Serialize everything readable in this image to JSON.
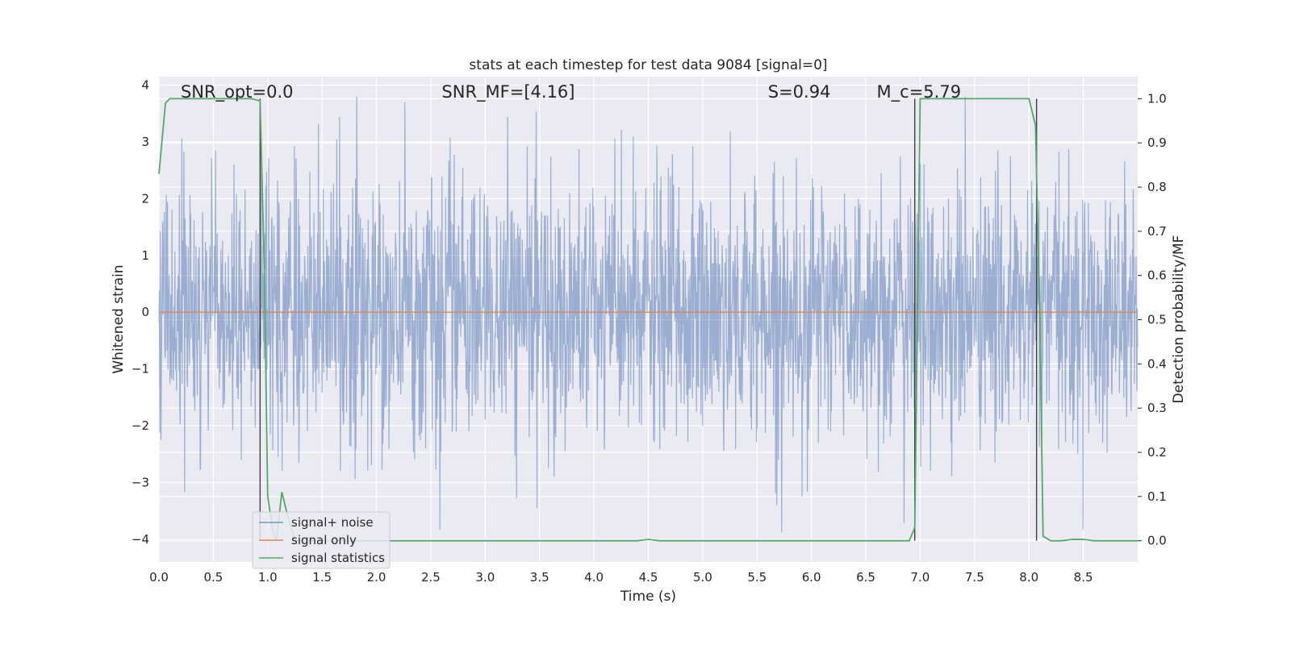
{
  "chart_data": {
    "type": "line",
    "title": "stats at each timestep for test data 9084 [signal=0]",
    "xlabel": "Time (s)",
    "ylabel_left": "Whitened strain",
    "ylabel_right": "Detection probability/MF",
    "xlim": [
      0.0,
      9.0
    ],
    "ylim_left": [
      -4.4,
      4.15
    ],
    "ylim_right": [
      -0.048,
      1.05
    ],
    "x_ticks": [
      0.0,
      0.5,
      1.0,
      1.5,
      2.0,
      2.5,
      3.0,
      3.5,
      4.0,
      4.5,
      5.0,
      5.5,
      6.0,
      6.5,
      7.0,
      7.5,
      8.0,
      8.5
    ],
    "x_tick_labels": [
      "0.0",
      "0.5",
      "1.0",
      "1.5",
      "2.0",
      "2.5",
      "3.0",
      "3.5",
      "4.0",
      "4.5",
      "5.0",
      "5.5",
      "6.0",
      "6.5",
      "7.0",
      "7.5",
      "8.0",
      "8.5"
    ],
    "y_left_ticks": [
      -4,
      -3,
      -2,
      -1,
      0,
      1,
      2,
      3,
      4
    ],
    "y_left_tick_labels": [
      "−4",
      "−3",
      "−2",
      "−1",
      "0",
      "1",
      "2",
      "3",
      "4"
    ],
    "y_right_ticks": [
      0.0,
      0.1,
      0.2,
      0.3,
      0.4,
      0.5,
      0.6,
      0.7,
      0.8,
      0.9,
      1.0
    ],
    "y_right_tick_labels": [
      "0.0",
      "0.1",
      "0.2",
      "0.3",
      "0.4",
      "0.5",
      "0.6",
      "0.7",
      "0.8",
      "0.9",
      "1.0"
    ],
    "grid": true,
    "legend_position": "lower-left",
    "annotations": [
      {
        "label": "SNR_opt=0.0",
        "x": 0.2
      },
      {
        "label": "SNR_MF=[4.16]",
        "x": 2.6
      },
      {
        "label": "S=0.94",
        "x": 5.6
      },
      {
        "label": "M_c=5.79",
        "x": 6.6
      }
    ],
    "series": [
      {
        "name": "signal+ noise",
        "axis": "left",
        "color": "#4c72b0",
        "description_of_values": "whitened noise strain sampled across 0-9 s, envelope roughly -3.9 to 3.8",
        "envelope": {
          "min": -3.9,
          "max": 3.8,
          "typical_abs": 2.2
        }
      },
      {
        "name": "signal only",
        "axis": "left",
        "color": "#dd8452",
        "x": [
          0.0,
          9.0
        ],
        "y": [
          0.0,
          0.0
        ]
      },
      {
        "name": "signal statistics",
        "axis": "right",
        "color": "#55a868",
        "x": [
          0.0,
          0.06,
          0.1,
          0.15,
          0.3,
          0.5,
          0.7,
          0.85,
          0.93,
          0.97,
          1.0,
          1.05,
          1.08,
          1.13,
          1.18,
          1.25,
          1.4,
          2.0,
          3.0,
          4.0,
          4.4,
          4.5,
          4.6,
          5.0,
          6.0,
          6.9,
          6.95,
          7.0,
          7.5,
          7.9,
          8.0,
          8.06,
          8.1,
          8.13,
          8.2,
          8.3,
          8.4,
          8.5,
          8.6,
          9.0
        ],
        "y": [
          0.83,
          0.99,
          1.0,
          1.0,
          1.0,
          1.0,
          1.0,
          1.0,
          0.995,
          0.6,
          0.1,
          0.02,
          0.0,
          0.11,
          0.06,
          0.0,
          0.0,
          0.0,
          0.0,
          0.0,
          0.0,
          0.003,
          0.0,
          0.0,
          0.0,
          0.0,
          0.03,
          1.0,
          1.0,
          1.0,
          1.0,
          0.94,
          0.5,
          0.01,
          0.0,
          0.0,
          0.003,
          0.003,
          0.0,
          0.0
        ]
      }
    ],
    "markers": {
      "color": "#404040",
      "x": [
        0.93,
        6.95,
        8.07
      ]
    }
  }
}
